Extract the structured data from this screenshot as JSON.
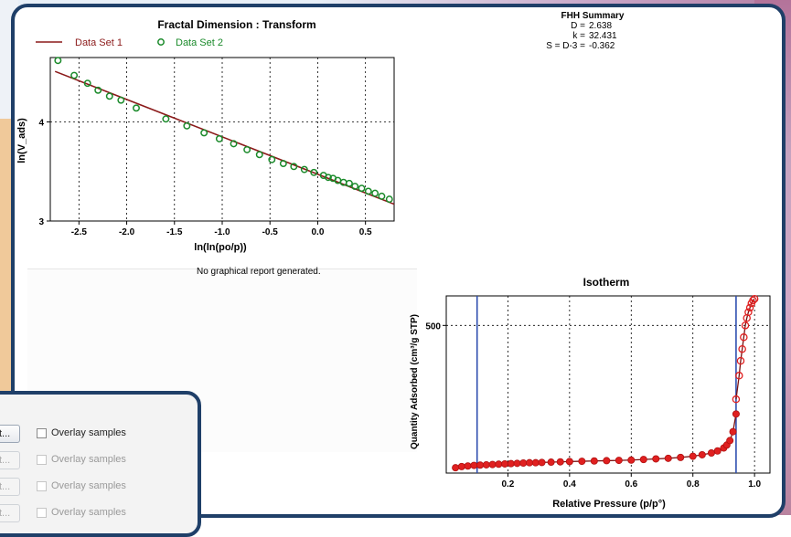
{
  "fractal_chart": {
    "title": "Fractal Dimension : Transform",
    "xlabel": "ln(ln(po/p))",
    "ylabel": "ln(V_ads)",
    "legend": [
      "Data Set 1",
      "Data Set 2"
    ]
  },
  "fhh_summary": {
    "title": "FHH Summary",
    "rows": [
      {
        "label": "D =",
        "value": "2.638"
      },
      {
        "label": "k =",
        "value": "32.431"
      },
      {
        "label": "S = D-3 =",
        "value": "-0.362"
      }
    ]
  },
  "no_report_text": "No graphical report generated.",
  "isotherm_chart": {
    "title": "Isotherm",
    "xlabel": "Relative Pressure (p/p°)",
    "ylabel": "Quantity Adsorbed (cm³/g STP)"
  },
  "dialog": {
    "rows": [
      {
        "button": "t...",
        "checkbox_label": "Overlay samples",
        "enabled": true
      },
      {
        "button": "t...",
        "checkbox_label": "Overlay samples",
        "enabled": false
      },
      {
        "button": "t...",
        "checkbox_label": "Overlay samples",
        "enabled": false
      },
      {
        "button": "t...",
        "checkbox_label": "Overlay samples",
        "enabled": false
      }
    ]
  },
  "colors": {
    "series1": "#8b1a1a",
    "series2": "#1a8a2a",
    "isotherm_points": "#e02020",
    "isotherm_line": "#7a1010",
    "marker_lines": "#2f4fb0",
    "frame": "#1f3f68"
  },
  "chart_data": [
    {
      "type": "scatter",
      "title": "Fractal Dimension : Transform",
      "xlabel": "ln(ln(po/p))",
      "ylabel": "ln(V_ads)",
      "xlim": [
        -2.8,
        0.8
      ],
      "ylim": [
        3.0,
        4.65
      ],
      "xticks": [
        -2.5,
        -2.0,
        -1.5,
        -1.0,
        -0.5,
        0.0,
        0.5
      ],
      "yticks": [
        3,
        4
      ],
      "grid": true,
      "legend_position": "top-left",
      "series": [
        {
          "name": "Data Set 1",
          "kind": "line",
          "x": [
            -2.75,
            0.8
          ],
          "y": [
            4.51,
            3.17
          ]
        },
        {
          "name": "Data Set 2",
          "kind": "scatter",
          "x": [
            -2.72,
            -2.55,
            -2.41,
            -2.3,
            -2.18,
            -2.06,
            -1.9,
            -1.59,
            -1.37,
            -1.19,
            -1.03,
            -0.88,
            -0.74,
            -0.61,
            -0.48,
            -0.36,
            -0.25,
            -0.14,
            -0.04,
            0.06,
            0.11,
            0.16,
            0.21,
            0.27,
            0.33,
            0.39,
            0.46,
            0.53,
            0.6,
            0.67,
            0.75
          ],
          "y": [
            4.62,
            4.47,
            4.39,
            4.32,
            4.26,
            4.22,
            4.14,
            4.03,
            3.96,
            3.89,
            3.83,
            3.78,
            3.72,
            3.67,
            3.62,
            3.58,
            3.55,
            3.52,
            3.49,
            3.46,
            3.44,
            3.43,
            3.41,
            3.39,
            3.38,
            3.35,
            3.33,
            3.3,
            3.28,
            3.25,
            3.22
          ]
        }
      ]
    },
    {
      "type": "line",
      "title": "Isotherm",
      "xlabel": "Relative Pressure (p/p°)",
      "ylabel": "Quantity Adsorbed (cm³/g STP)",
      "xlim": [
        0.0,
        1.05
      ],
      "ylim": [
        0,
        600
      ],
      "xticks": [
        0.2,
        0.4,
        0.6,
        0.8,
        1.0
      ],
      "yticks": [
        500
      ],
      "grid": true,
      "vertical_markers": [
        0.1,
        0.94
      ],
      "series": [
        {
          "kind": "adsorption",
          "x": [
            0.03,
            0.05,
            0.07,
            0.09,
            0.11,
            0.13,
            0.15,
            0.17,
            0.19,
            0.21,
            0.23,
            0.25,
            0.27,
            0.29,
            0.31,
            0.34,
            0.37,
            0.4,
            0.44,
            0.48,
            0.52,
            0.56,
            0.6,
            0.64,
            0.68,
            0.72,
            0.76,
            0.8,
            0.83,
            0.86,
            0.88,
            0.9,
            0.91,
            0.92,
            0.93,
            0.94
          ],
          "y": [
            18,
            22,
            24,
            26,
            27,
            28,
            29,
            30,
            31,
            32,
            33,
            34,
            35,
            35,
            36,
            37,
            38,
            39,
            40,
            41,
            42,
            43,
            44,
            46,
            48,
            50,
            53,
            57,
            62,
            68,
            75,
            85,
            95,
            110,
            140,
            200
          ]
        },
        {
          "kind": "desorption",
          "x": [
            0.94,
            0.95,
            0.955,
            0.96,
            0.965,
            0.97,
            0.975,
            0.98,
            0.985,
            0.99,
            0.995,
            1.0
          ],
          "y": [
            250,
            330,
            380,
            420,
            460,
            500,
            525,
            545,
            560,
            575,
            585,
            590
          ]
        }
      ]
    }
  ]
}
